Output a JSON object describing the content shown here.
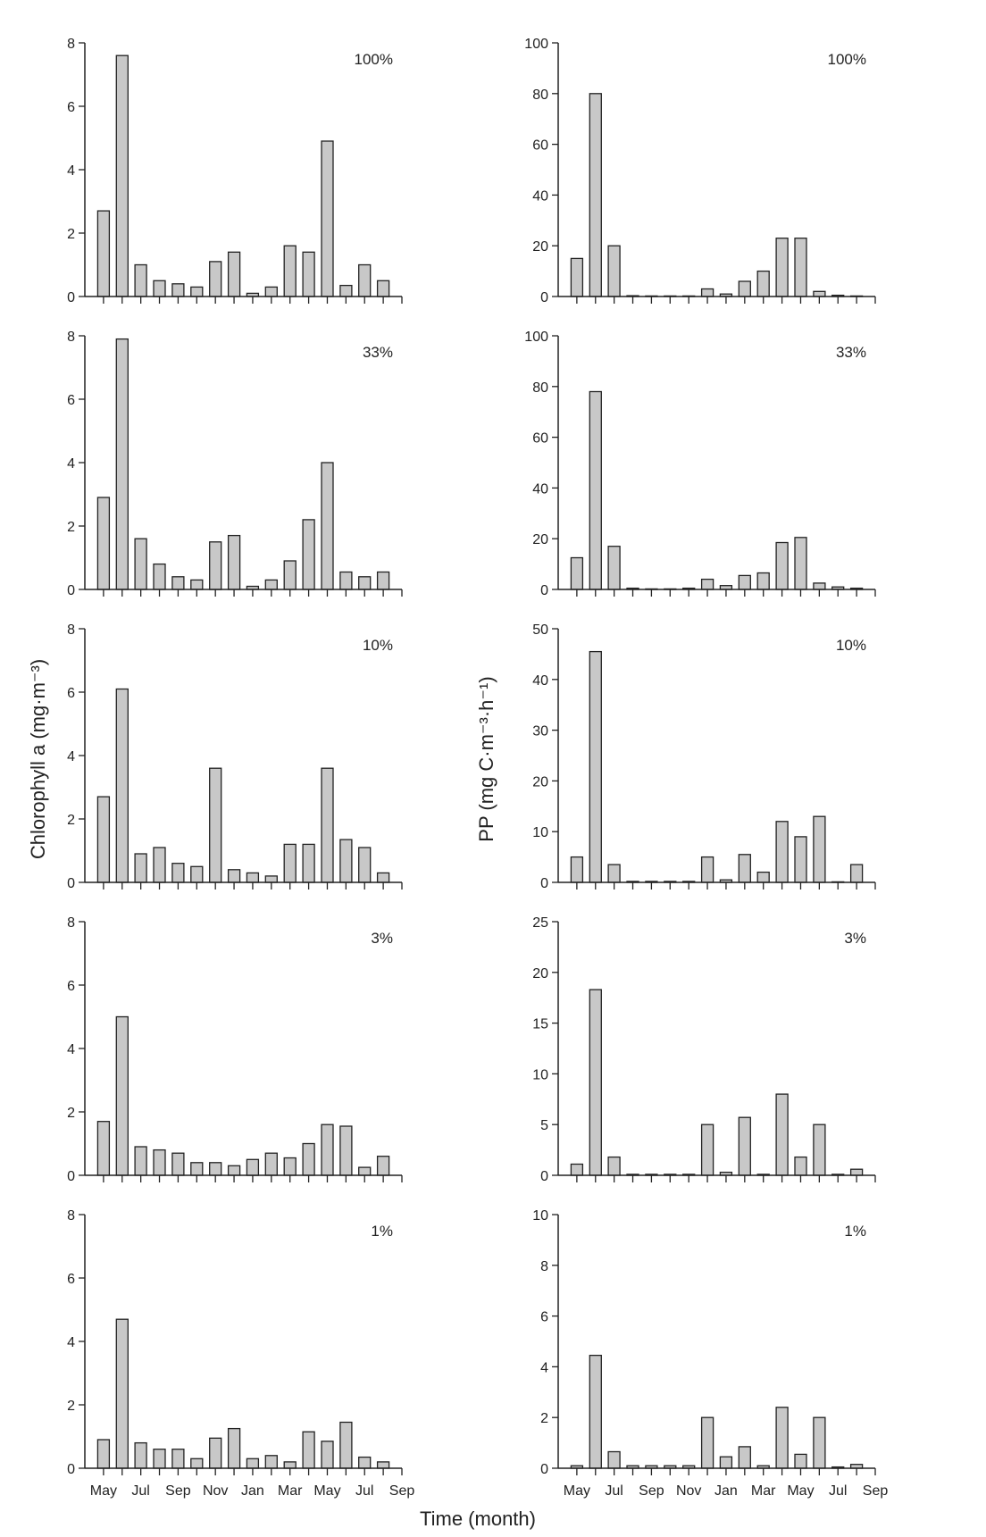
{
  "figure": {
    "xlabel": "Time (month)",
    "left_ylabel": "Chlorophyll a (mg·m⁻³)",
    "right_ylabel": "PP (mg C·m⁻³·h⁻¹)",
    "month_ticks": [
      "May",
      "Jul",
      "Sep",
      "Nov",
      "Jan",
      "Mar",
      "May",
      "Jul",
      "Sep"
    ],
    "colors": {
      "bar_fill": "#c8c8c8",
      "bar_stroke": "#222222",
      "axis": "#222222"
    }
  },
  "chart_data": [
    {
      "type": "bar",
      "panel": "chlorophyll",
      "label": "100%",
      "ylim": [
        0,
        8
      ],
      "yticks": [
        0,
        2,
        4,
        6,
        8
      ],
      "values": [
        2.7,
        7.6,
        1.0,
        0.5,
        0.4,
        0.3,
        1.1,
        1.4,
        0.1,
        0.3,
        1.6,
        1.4,
        4.9,
        0.35,
        1.0,
        0.5
      ]
    },
    {
      "type": "bar",
      "panel": "pp",
      "label": "100%",
      "ylim": [
        0,
        100
      ],
      "yticks": [
        0,
        20,
        40,
        60,
        80,
        100
      ],
      "values": [
        15,
        80,
        20,
        0.3,
        0,
        0,
        0,
        3,
        1,
        6,
        10,
        23,
        23,
        2,
        0.5,
        0
      ]
    },
    {
      "type": "bar",
      "panel": "chlorophyll",
      "label": "33%",
      "ylim": [
        0,
        8
      ],
      "yticks": [
        0,
        2,
        4,
        6,
        8
      ],
      "values": [
        2.9,
        7.9,
        1.6,
        0.8,
        0.4,
        0.3,
        1.5,
        1.7,
        0.1,
        0.3,
        0.9,
        2.2,
        4.0,
        0.55,
        0.4,
        0.55
      ]
    },
    {
      "type": "bar",
      "panel": "pp",
      "label": "33%",
      "ylim": [
        0,
        100
      ],
      "yticks": [
        0,
        20,
        40,
        60,
        80,
        100
      ],
      "values": [
        12.5,
        78,
        17,
        0.5,
        0,
        0,
        0.5,
        4,
        1.5,
        5.5,
        6.5,
        18.5,
        20.5,
        2.5,
        1,
        0.5
      ]
    },
    {
      "type": "bar",
      "panel": "chlorophyll",
      "label": "10%",
      "ylim": [
        0,
        8
      ],
      "yticks": [
        0,
        2,
        4,
        6,
        8
      ],
      "values": [
        2.7,
        6.1,
        0.9,
        1.1,
        0.6,
        0.5,
        3.6,
        0.4,
        0.3,
        0.2,
        1.2,
        1.2,
        3.6,
        1.35,
        1.1,
        0.3
      ]
    },
    {
      "type": "bar",
      "panel": "pp",
      "label": "10%",
      "ylim": [
        0,
        50
      ],
      "yticks": [
        0,
        10,
        20,
        30,
        40,
        50
      ],
      "values": [
        5,
        45.5,
        3.5,
        0.2,
        0.2,
        0.2,
        0.2,
        5,
        0.5,
        5.5,
        2,
        12,
        9,
        13,
        0,
        3.5
      ]
    },
    {
      "type": "bar",
      "panel": "chlorophyll",
      "label": "3%",
      "ylim": [
        0,
        8
      ],
      "yticks": [
        0,
        2,
        4,
        6,
        8
      ],
      "values": [
        1.7,
        5.0,
        0.9,
        0.8,
        0.7,
        0.4,
        0.4,
        0.3,
        0.5,
        0.7,
        0.55,
        1.0,
        1.6,
        1.55,
        0.25,
        0.6
      ]
    },
    {
      "type": "bar",
      "panel": "pp",
      "label": "3%",
      "ylim": [
        0,
        25
      ],
      "yticks": [
        0,
        5,
        10,
        15,
        20,
        25
      ],
      "values": [
        1.1,
        18.3,
        1.8,
        0.1,
        0.1,
        0.1,
        0.1,
        5.0,
        0.3,
        5.7,
        0.1,
        8.0,
        1.8,
        5.0,
        0.1,
        0.6
      ]
    },
    {
      "type": "bar",
      "panel": "chlorophyll",
      "label": "1%",
      "ylim": [
        0,
        8
      ],
      "yticks": [
        0,
        2,
        4,
        6,
        8
      ],
      "values": [
        0.9,
        4.7,
        0.8,
        0.6,
        0.6,
        0.3,
        0.95,
        1.25,
        0.3,
        0.4,
        0.2,
        1.15,
        0.85,
        1.45,
        0.35,
        0.2
      ]
    },
    {
      "type": "bar",
      "panel": "pp",
      "label": "1%",
      "ylim": [
        0,
        10
      ],
      "yticks": [
        0,
        2,
        4,
        6,
        8,
        10
      ],
      "values": [
        0.1,
        4.45,
        0.65,
        0.1,
        0.1,
        0.1,
        0.1,
        2.0,
        0.45,
        0.85,
        0.1,
        2.4,
        0.55,
        2.0,
        0.05,
        0.15
      ]
    }
  ]
}
